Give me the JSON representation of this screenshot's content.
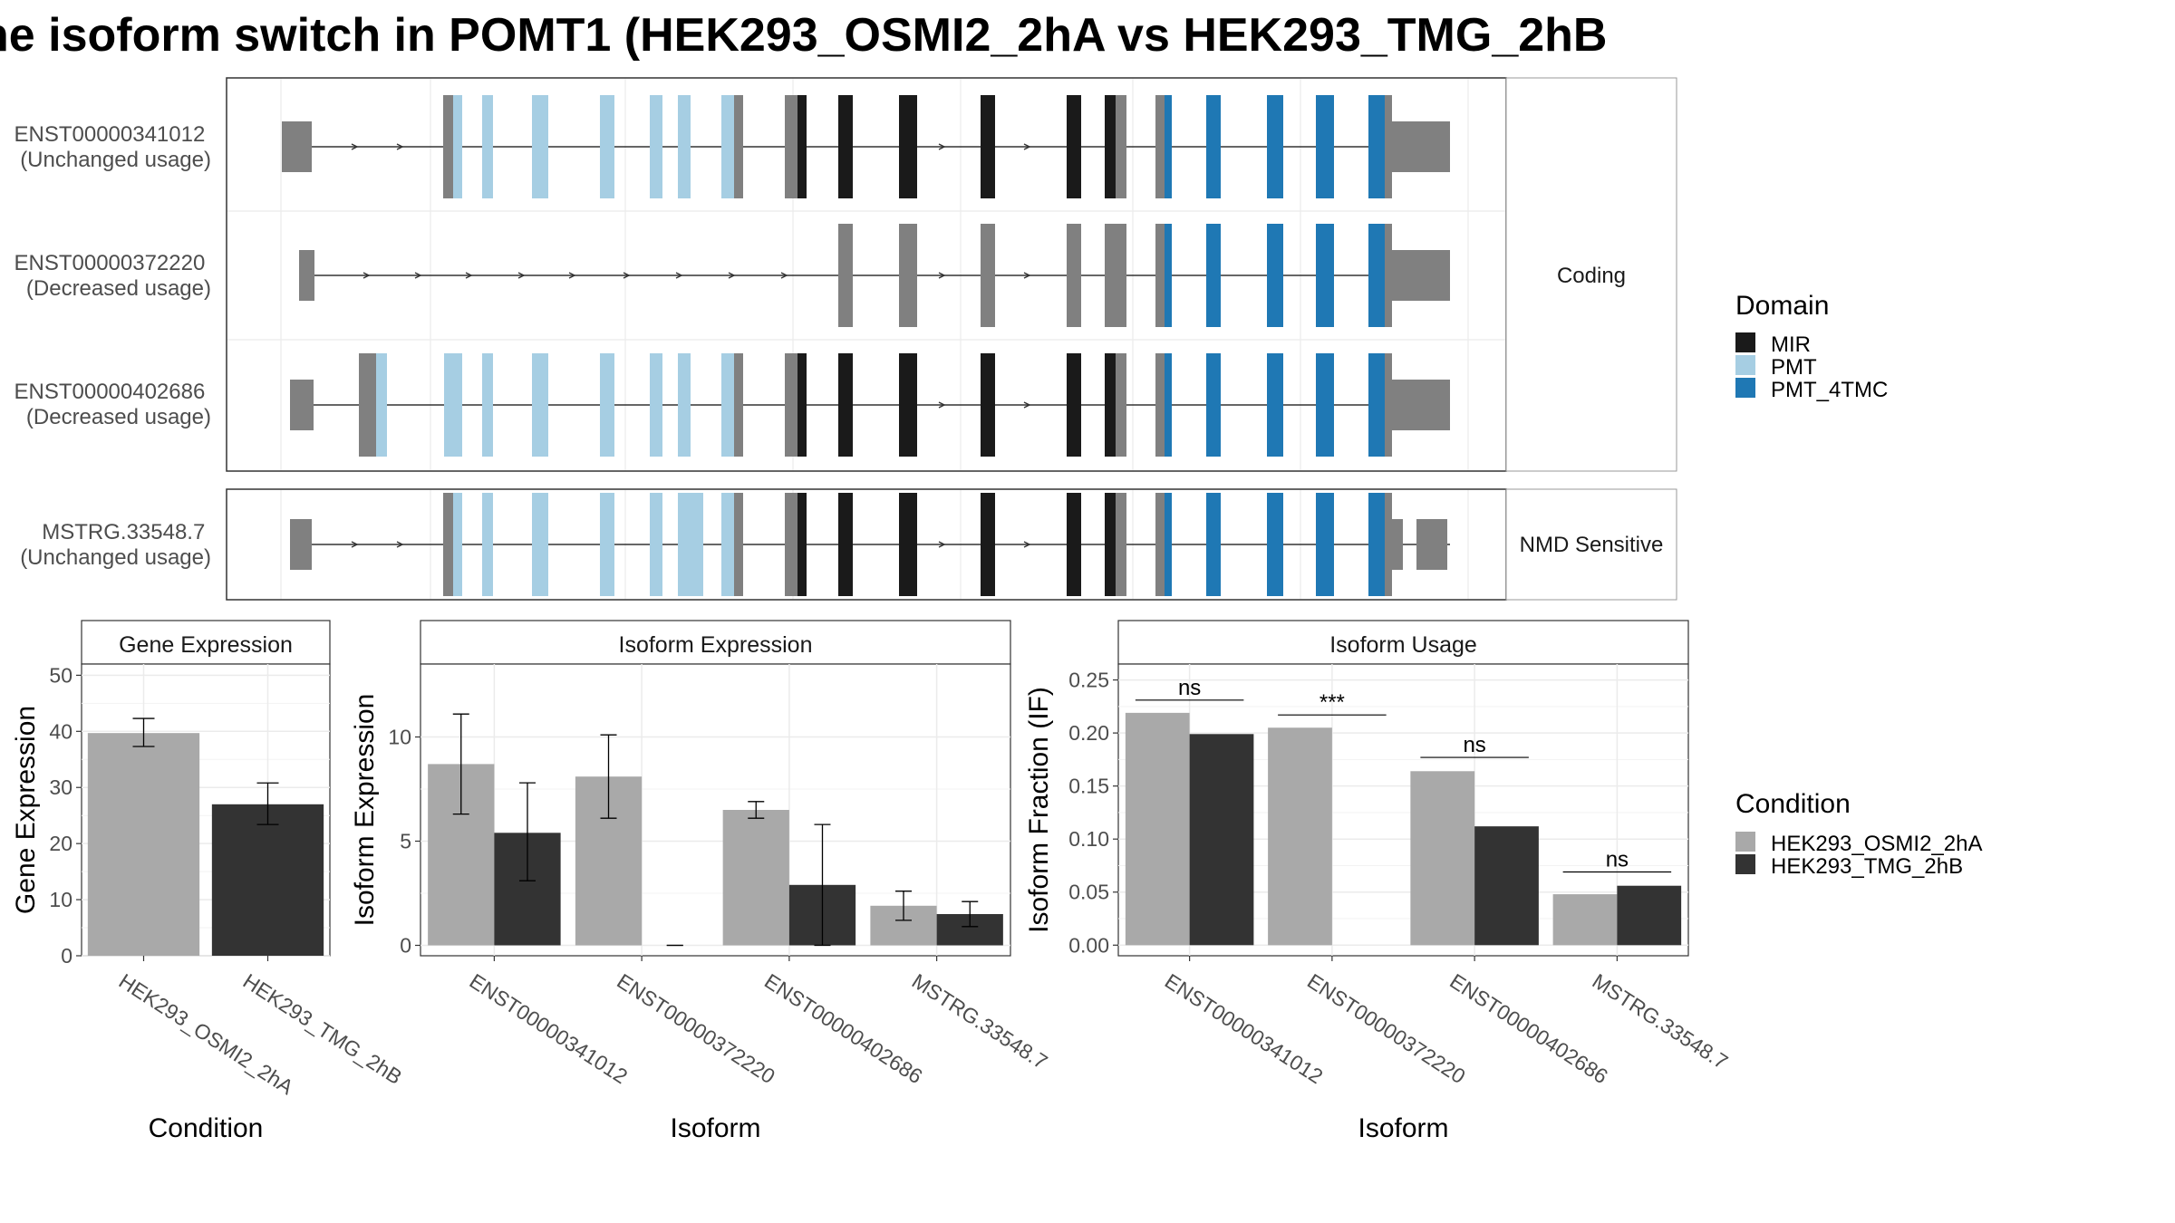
{
  "title": "he isoform switch in POMT1 (HEK293_OSMI2_2hA vs HEK293_TMG_2hB",
  "colors": {
    "utr": "#808080",
    "cds": "#808080",
    "MIR": "#1a1a1a",
    "PMT": "#a6cee3",
    "PMT_4TMC": "#1f78b4",
    "cond1": "#a9a9a9",
    "cond2": "#333333",
    "panel_border": "#333333",
    "strip_bg": "#ffffff",
    "grid": "#ebebeb"
  },
  "structure": {
    "coding_strip": "Coding",
    "nmd_strip": "NMD Sensitive",
    "coding_transcripts": [
      {
        "id": "ENST00000341012",
        "usage": "(Unchanged usage)"
      },
      {
        "id": "ENST00000372220",
        "usage": "(Decreased usage)"
      },
      {
        "id": "ENST00000402686",
        "usage": "(Decreased usage)"
      }
    ],
    "nmd_transcripts": [
      {
        "id": "MSTRG.33548.7",
        "usage": "(Unchanged usage)"
      }
    ]
  },
  "domain_legend": {
    "title": "Domain",
    "items": [
      {
        "label": "MIR",
        "color": "#1a1a1a"
      },
      {
        "label": "PMT",
        "color": "#a6cee3"
      },
      {
        "label": "PMT_4TMC",
        "color": "#1f78b4"
      }
    ]
  },
  "condition_legend": {
    "title": "Condition",
    "items": [
      {
        "label": "HEK293_OSMI2_2hA",
        "color": "#a9a9a9"
      },
      {
        "label": "HEK293_TMG_2hB",
        "color": "#333333"
      }
    ]
  },
  "chart_data": [
    {
      "type": "bar",
      "title": "Gene Expression",
      "xlabel": "Condition",
      "ylabel": "Gene Expression",
      "ylim": [
        0,
        52
      ],
      "yticks": [
        0,
        10,
        20,
        30,
        40,
        50
      ],
      "categories": [
        "HEK293_OSMI2_2hA",
        "HEK293_TMG_2hB"
      ],
      "values": [
        39.7,
        27.0
      ],
      "error_low": [
        37.3,
        23.4
      ],
      "error_high": [
        42.3,
        30.8
      ],
      "colors": [
        "#a9a9a9",
        "#333333"
      ]
    },
    {
      "type": "bar",
      "title": "Isoform Expression",
      "xlabel": "Isoform",
      "ylabel": "Isoform Expression",
      "ylim": [
        -0.5,
        13.5
      ],
      "yticks": [
        0,
        5,
        10
      ],
      "categories": [
        "ENST00000341012",
        "ENST00000372220",
        "ENST00000402686",
        "MSTRG.33548.7"
      ],
      "series": [
        {
          "name": "HEK293_OSMI2_2hA",
          "values": [
            8.7,
            8.1,
            6.5,
            1.9
          ],
          "error_low": [
            6.3,
            6.1,
            6.1,
            1.2
          ],
          "error_high": [
            11.1,
            10.1,
            6.9,
            2.6
          ]
        },
        {
          "name": "HEK293_TMG_2hB",
          "values": [
            5.4,
            0.0,
            2.9,
            1.5
          ],
          "error_low": [
            3.1,
            0.0,
            0.0,
            0.9
          ],
          "error_high": [
            7.8,
            0.0,
            5.8,
            2.1
          ]
        }
      ]
    },
    {
      "type": "bar",
      "title": "Isoform Usage",
      "xlabel": "Isoform",
      "ylabel": "Isoform Fraction (IF)",
      "ylim": [
        -0.01,
        0.265
      ],
      "yticks": [
        "0.00",
        "0.05",
        "0.10",
        "0.15",
        "0.20",
        "0.25"
      ],
      "categories": [
        "ENST00000341012",
        "ENST00000372220",
        "ENST00000402686",
        "MSTRG.33548.7"
      ],
      "series": [
        {
          "name": "HEK293_OSMI2_2hA",
          "values": [
            0.219,
            0.205,
            0.164,
            0.048
          ]
        },
        {
          "name": "HEK293_TMG_2hB",
          "values": [
            0.199,
            0.0,
            0.112,
            0.056
          ]
        }
      ],
      "significance": [
        {
          "label": "ns",
          "y": 0.231
        },
        {
          "label": "***",
          "y": 0.217
        },
        {
          "label": "ns",
          "y": 0.177
        },
        {
          "label": "ns",
          "y": 0.069
        }
      ]
    }
  ]
}
